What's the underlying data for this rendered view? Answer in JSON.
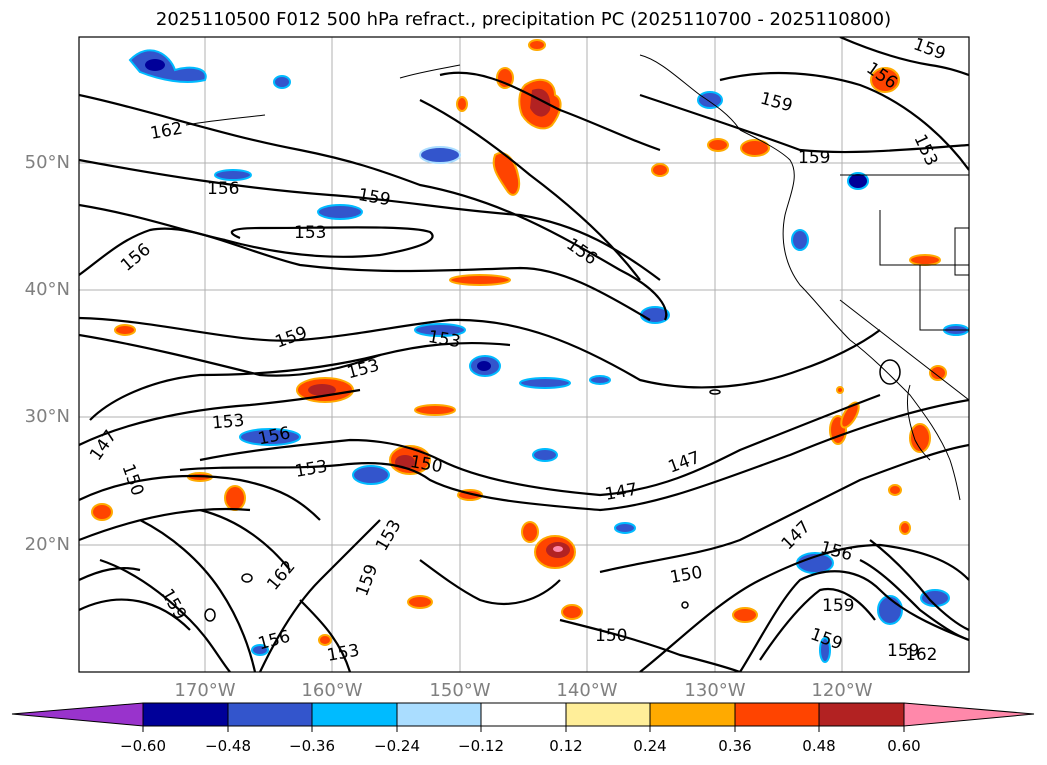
{
  "title": "2025110500 F012 500 hPa refract., precipitation PC (2025110700 - 2025110800)",
  "lat_labels": [
    "50°N",
    "40°N",
    "30°N",
    "20°N"
  ],
  "lon_labels": [
    "170°W",
    "160°W",
    "150°W",
    "140°W",
    "130°W",
    "120°W"
  ],
  "contour_labels": [
    "162",
    "156",
    "159",
    "153",
    "156",
    "159",
    "153",
    "156",
    "153",
    "153",
    "147",
    "150",
    "153",
    "150",
    "147",
    "147",
    "162",
    "159",
    "156",
    "153",
    "159",
    "153",
    "150",
    "150",
    "147",
    "156",
    "159",
    "159",
    "159",
    "162",
    "159",
    "156",
    "153",
    "159",
    "159",
    "156"
  ],
  "colorbar": {
    "ticks": [
      "−0.60",
      "−0.48",
      "−0.36",
      "−0.24",
      "−0.12",
      "0.12",
      "0.24",
      "0.36",
      "0.48",
      "0.60"
    ],
    "colors": [
      "#9933cc",
      "#000099",
      "#3355cc",
      "#00bbff",
      "#aaddff",
      "#ffffff",
      "#ffee99",
      "#ffaa00",
      "#ff4400",
      "#b22222",
      "#ff88aa"
    ]
  }
}
